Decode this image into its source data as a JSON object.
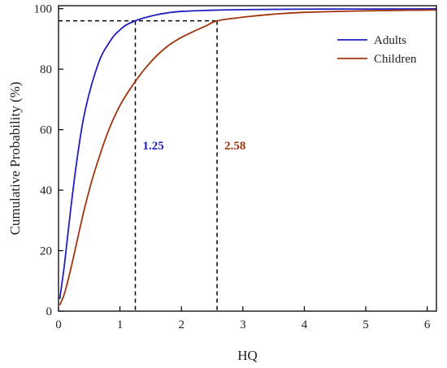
{
  "chart_data": {
    "type": "line",
    "xlabel": "HQ",
    "ylabel": "Cumulative Probability (%)",
    "xlim": [
      0,
      6.15
    ],
    "ylim": [
      0,
      101
    ],
    "x_ticks": [
      0,
      1,
      2,
      3,
      4,
      5,
      6
    ],
    "y_ticks": [
      0,
      20,
      40,
      60,
      80,
      100
    ],
    "grid": false,
    "legend_position": "top-right",
    "series": [
      {
        "name": "Adults",
        "color": "#1f1fbf",
        "x": [
          0.02,
          0.1,
          0.2,
          0.3,
          0.4,
          0.5,
          0.6,
          0.7,
          0.8,
          0.9,
          1.0,
          1.1,
          1.25,
          1.4,
          1.6,
          1.8,
          2.0,
          2.5,
          3.0,
          4.0,
          5.0,
          6.15
        ],
        "y": [
          4,
          16,
          34,
          50,
          63,
          72,
          79,
          84.5,
          88,
          91,
          93,
          94.6,
          96,
          97,
          98,
          98.7,
          99.1,
          99.5,
          99.7,
          99.85,
          99.9,
          99.95
        ]
      },
      {
        "name": "Children",
        "color": "#a0350c",
        "x": [
          0.02,
          0.1,
          0.2,
          0.3,
          0.4,
          0.5,
          0.6,
          0.8,
          1.0,
          1.2,
          1.4,
          1.6,
          1.8,
          2.0,
          2.2,
          2.4,
          2.58,
          3.0,
          3.5,
          4.0,
          5.0,
          6.15
        ],
        "y": [
          2,
          6,
          14,
          23,
          32,
          40,
          47,
          59,
          68,
          74.5,
          80,
          84.5,
          88,
          90.5,
          92.5,
          94.3,
          96,
          97.2,
          98.2,
          98.8,
          99.3,
          99.6
        ]
      }
    ],
    "reference_level": 96,
    "annotations": [
      {
        "label": "1.25",
        "x": 1.25,
        "color": "#1f1fbf"
      },
      {
        "label": "2.58",
        "x": 2.58,
        "color": "#a0350c"
      }
    ]
  }
}
